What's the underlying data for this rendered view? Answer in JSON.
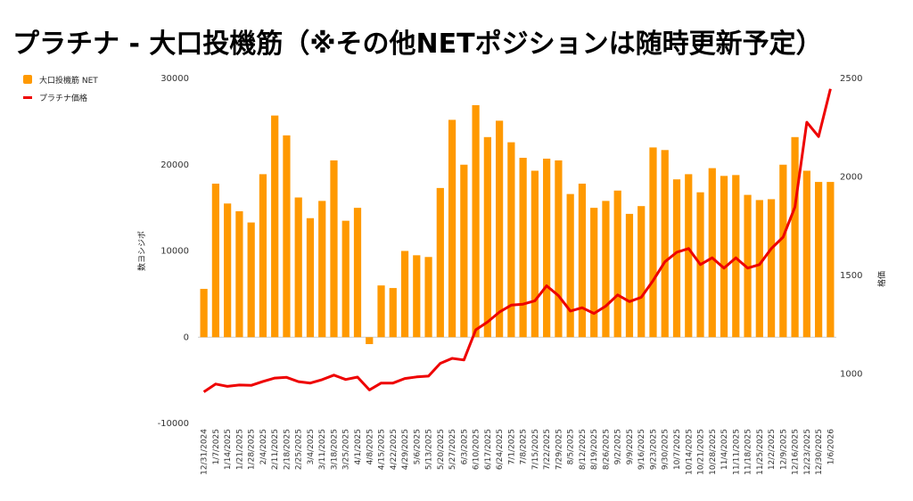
{
  "chart_data": {
    "type": "bar",
    "title": "プラチナ - 大口投機筋（※その他NETポジションは随時更新予定）",
    "ylabel": "数ヨシジポ",
    "y2label": "格価",
    "ylim": [
      -10000,
      30000
    ],
    "y_ticks": [
      "30000",
      "20000",
      "10000",
      "0",
      "-10000"
    ],
    "y2lim": [
      750,
      2500
    ],
    "y2_ticks": [
      "2500",
      "2000",
      "1500",
      "1000"
    ],
    "legend_position": "left",
    "categories": [
      "12/31/2024",
      "1/7/2025",
      "1/14/2025",
      "1/21/2025",
      "1/28/2025",
      "2/4/2025",
      "2/11/2025",
      "2/18/2025",
      "2/25/2025",
      "3/4/2025",
      "3/11/2025",
      "3/18/2025",
      "3/25/2025",
      "4/1/2025",
      "4/8/2025",
      "4/15/2025",
      "4/22/2025",
      "4/29/2025",
      "5/6/2025",
      "5/13/2025",
      "5/20/2025",
      "5/27/2025",
      "6/3/2025",
      "6/10/2025",
      "6/17/2025",
      "6/24/2025",
      "7/1/2025",
      "7/8/2025",
      "7/15/2025",
      "7/22/2025",
      "7/29/2025",
      "8/5/2025",
      "8/12/2025",
      "8/19/2025",
      "8/26/2025",
      "9/2/2025",
      "9/9/2025",
      "9/16/2025",
      "9/23/2025",
      "9/30/2025",
      "10/7/2025",
      "10/14/2025",
      "10/21/2025",
      "10/28/2025",
      "11/4/2025",
      "11/11/2025",
      "11/18/2025",
      "11/25/2025",
      "12/2/2025",
      "12/9/2025",
      "12/16/2025",
      "12/23/2025",
      "12/30/2025",
      "1/6/2026"
    ],
    "series": [
      {
        "name": "大口投機筋 NET",
        "type": "bar",
        "axis": "left",
        "color": "#ff9900",
        "values": [
          5600,
          17800,
          15500,
          14600,
          13300,
          18900,
          25700,
          23400,
          16200,
          13800,
          15800,
          20500,
          13500,
          15000,
          -800,
          6000,
          5700,
          10000,
          9500,
          9300,
          17300,
          25200,
          20000,
          26900,
          23200,
          25100,
          22600,
          20800,
          19300,
          20700,
          20500,
          16600,
          17800,
          15000,
          15800,
          17000,
          14300,
          15200,
          22000,
          21700,
          18300,
          18900,
          16800,
          19600,
          18700,
          18800,
          16500,
          15900,
          16000,
          20000,
          23200,
          19300,
          18000,
          18000
        ]
      },
      {
        "name": "プラチナ価格",
        "type": "line",
        "axis": "right",
        "color": "#ee0000",
        "values": [
          910,
          950,
          938,
          945,
          943,
          963,
          980,
          984,
          962,
          955,
          972,
          995,
          973,
          985,
          920,
          955,
          955,
          978,
          986,
          990,
          1055,
          1080,
          1072,
          1225,
          1265,
          1315,
          1350,
          1355,
          1372,
          1448,
          1398,
          1320,
          1337,
          1308,
          1345,
          1402,
          1368,
          1390,
          1475,
          1570,
          1618,
          1637,
          1556,
          1590,
          1538,
          1590,
          1538,
          1556,
          1637,
          1695,
          1848,
          2278,
          2205,
          2447
        ]
      }
    ]
  }
}
